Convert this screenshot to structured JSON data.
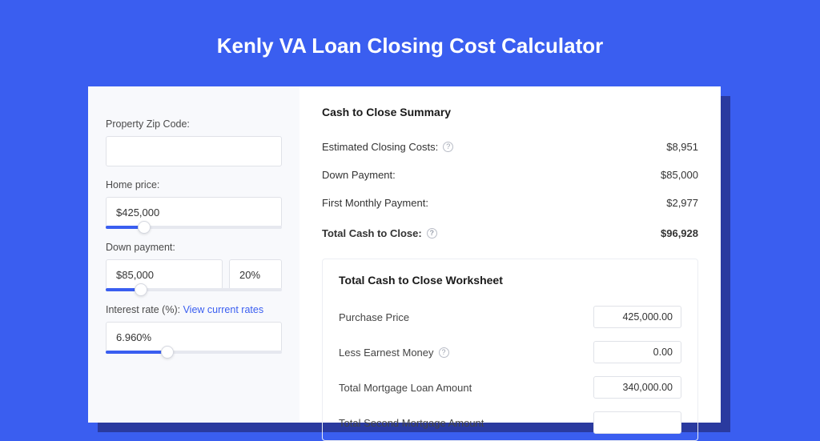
{
  "colors": {
    "page_bg": "#3a5ef0",
    "shadow": "#2a3a9f",
    "card_bg": "#ffffff",
    "left_panel_bg": "#f8f9fc",
    "input_border": "#e0e2e8",
    "slider_track": "#e6e8ef",
    "slider_fill": "#3a5ef0",
    "text_primary": "#1a1a1a",
    "text_body": "#333333",
    "text_muted": "#4a4a4a",
    "link": "#3a5ef0",
    "help_border": "#b8bcc6"
  },
  "title": "Kenly VA Loan Closing Cost Calculator",
  "form": {
    "zip": {
      "label": "Property Zip Code:",
      "value": ""
    },
    "home_price": {
      "label": "Home price:",
      "value": "$425,000",
      "slider_pct": 22
    },
    "down_payment": {
      "label": "Down payment:",
      "value": "$85,000",
      "pct": "20%",
      "slider_pct": 20
    },
    "interest_rate": {
      "label_prefix": "Interest rate (%): ",
      "link_text": "View current rates",
      "value": "6.960%",
      "slider_pct": 35
    }
  },
  "summary": {
    "title": "Cash to Close Summary",
    "rows": [
      {
        "label": "Estimated Closing Costs:",
        "help": true,
        "value": "$8,951"
      },
      {
        "label": "Down Payment:",
        "help": false,
        "value": "$85,000"
      },
      {
        "label": "First Monthly Payment:",
        "help": false,
        "value": "$2,977"
      }
    ],
    "total": {
      "label": "Total Cash to Close:",
      "help": true,
      "value": "$96,928"
    }
  },
  "worksheet": {
    "title": "Total Cash to Close Worksheet",
    "rows": [
      {
        "label": "Purchase Price",
        "help": false,
        "value": "425,000.00"
      },
      {
        "label": "Less Earnest Money",
        "help": true,
        "value": "0.00"
      },
      {
        "label": "Total Mortgage Loan Amount",
        "help": false,
        "value": "340,000.00"
      },
      {
        "label": "Total Second Mortgage Amount",
        "help": false,
        "value": ""
      }
    ]
  }
}
